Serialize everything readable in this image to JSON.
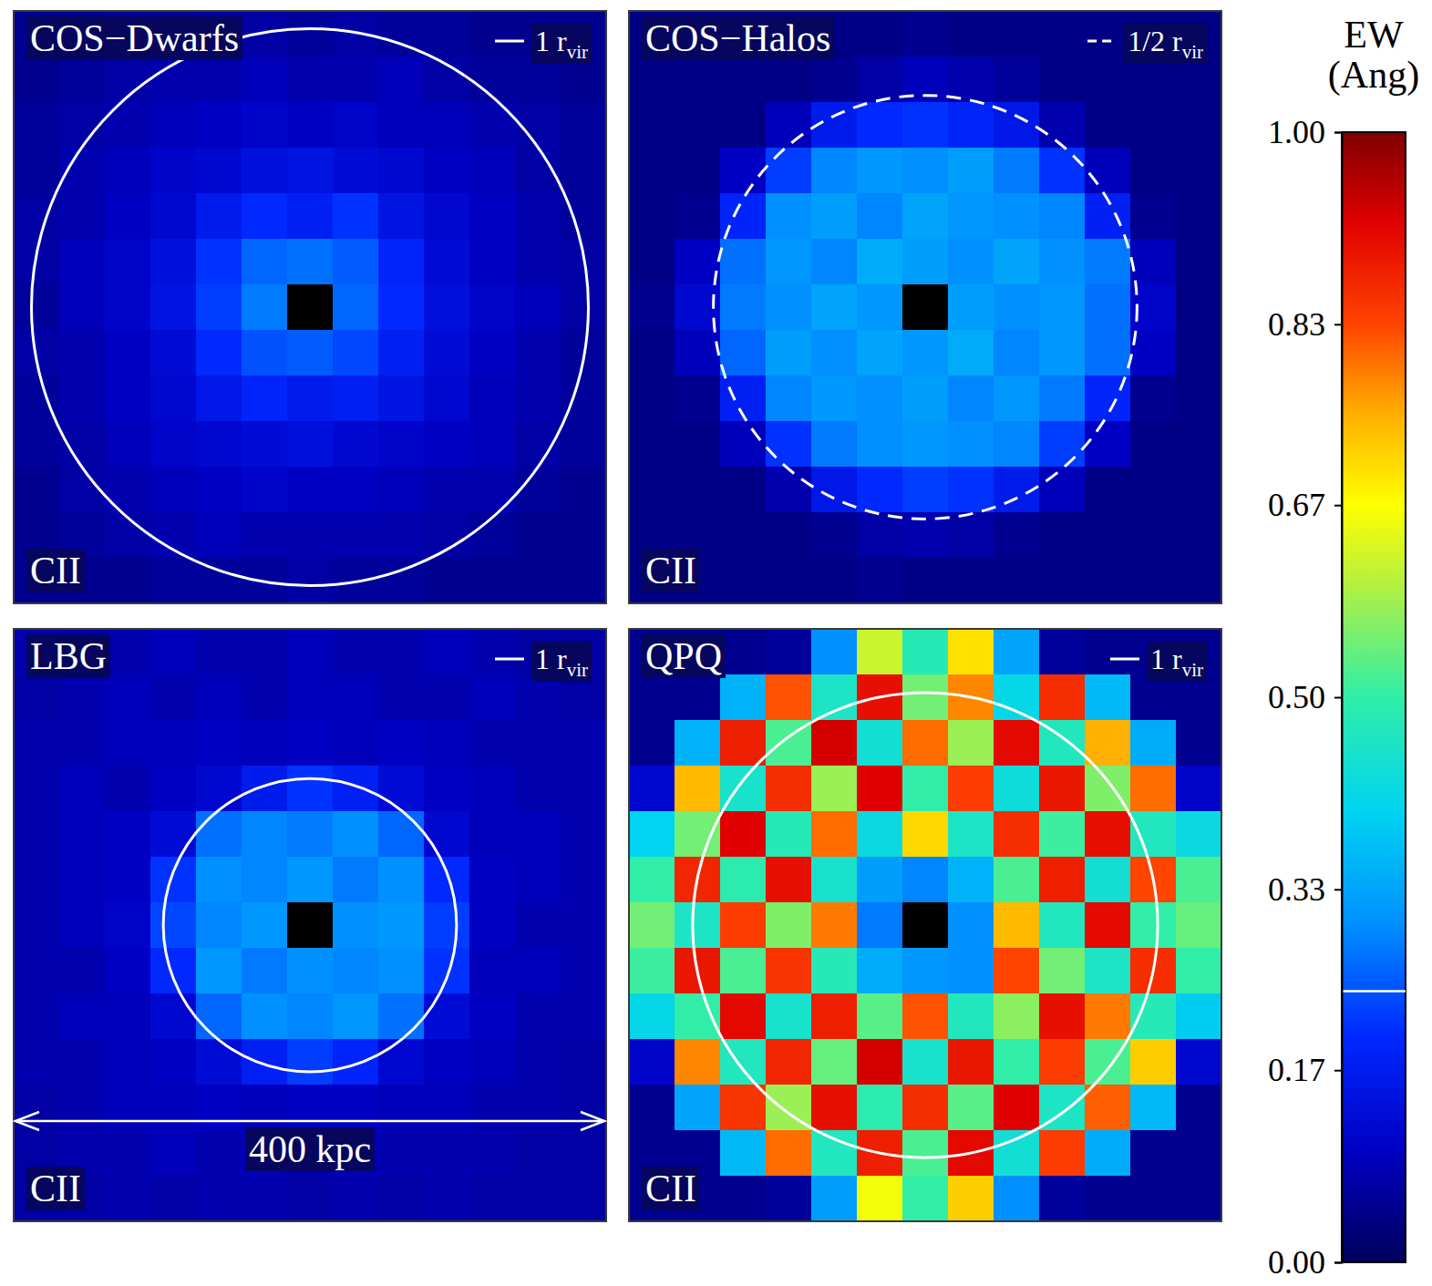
{
  "chart_data": [
    {
      "type": "heatmap",
      "title": "COS−Dwarfs",
      "label": "CII",
      "xlim": [
        -200,
        200
      ],
      "ylim": [
        -200,
        200
      ],
      "tick_labels": false,
      "circle": {
        "radius": 188,
        "line_style": "solid",
        "label": {
          "main": "1 r",
          "sub": "vir"
        }
      },
      "cells": [
        [
          0.05,
          0.05,
          0.06,
          0.06,
          0.07,
          0.07,
          0.06,
          0.07,
          0.06,
          0.06,
          0.05,
          0.05,
          0.05
        ],
        [
          0.05,
          0.06,
          0.07,
          0.08,
          0.08,
          0.09,
          0.08,
          0.08,
          0.09,
          0.07,
          0.06,
          0.06,
          0.05
        ],
        [
          0.06,
          0.07,
          0.08,
          0.09,
          0.1,
          0.11,
          0.1,
          0.11,
          0.09,
          0.09,
          0.08,
          0.07,
          0.06
        ],
        [
          0.06,
          0.08,
          0.09,
          0.11,
          0.12,
          0.14,
          0.15,
          0.13,
          0.12,
          0.1,
          0.09,
          0.07,
          0.06
        ],
        [
          0.07,
          0.08,
          0.1,
          0.12,
          0.17,
          0.2,
          0.18,
          0.21,
          0.15,
          0.12,
          0.1,
          0.08,
          0.06
        ],
        [
          0.07,
          0.09,
          0.11,
          0.14,
          0.21,
          0.26,
          0.27,
          0.25,
          0.19,
          0.13,
          0.1,
          0.08,
          0.07
        ],
        [
          0.06,
          0.09,
          0.11,
          0.15,
          0.22,
          0.28,
          null,
          0.26,
          0.2,
          0.14,
          0.11,
          0.09,
          0.07
        ],
        [
          0.07,
          0.08,
          0.1,
          0.13,
          0.2,
          0.24,
          0.25,
          0.23,
          0.18,
          0.13,
          0.1,
          0.08,
          0.06
        ],
        [
          0.06,
          0.08,
          0.1,
          0.12,
          0.16,
          0.19,
          0.17,
          0.18,
          0.15,
          0.12,
          0.09,
          0.08,
          0.06
        ],
        [
          0.06,
          0.07,
          0.09,
          0.11,
          0.12,
          0.13,
          0.14,
          0.12,
          0.11,
          0.1,
          0.09,
          0.07,
          0.06
        ],
        [
          0.05,
          0.07,
          0.08,
          0.09,
          0.1,
          0.11,
          0.1,
          0.1,
          0.09,
          0.08,
          0.08,
          0.06,
          0.05
        ],
        [
          0.05,
          0.06,
          0.07,
          0.08,
          0.09,
          0.08,
          0.08,
          0.08,
          0.08,
          0.07,
          0.06,
          0.05,
          0.05
        ],
        [
          0.05,
          0.05,
          0.05,
          0.06,
          0.06,
          0.06,
          0.07,
          0.06,
          0.06,
          0.05,
          0.05,
          0.05,
          0.05
        ]
      ]
    },
    {
      "type": "heatmap",
      "title": "COS−Halos",
      "label": "CII",
      "xlim": [
        -200,
        200
      ],
      "ylim": [
        -200,
        200
      ],
      "tick_labels": false,
      "circle": {
        "radius": 143,
        "line_style": "dashed",
        "label": {
          "main": "1/2 r",
          "sub": "vir"
        }
      },
      "cells": [
        [
          0.04,
          0.04,
          0.04,
          0.04,
          0.04,
          0.04,
          0.05,
          0.04,
          0.04,
          0.04,
          0.04,
          0.04,
          0.04
        ],
        [
          0.04,
          0.04,
          0.04,
          0.04,
          0.05,
          0.07,
          0.09,
          0.08,
          0.06,
          0.04,
          0.04,
          0.04,
          0.04
        ],
        [
          0.04,
          0.04,
          0.04,
          0.09,
          0.17,
          0.2,
          0.21,
          0.19,
          0.16,
          0.08,
          0.04,
          0.04,
          0.04
        ],
        [
          0.04,
          0.04,
          0.1,
          0.22,
          0.29,
          0.31,
          0.3,
          0.32,
          0.28,
          0.21,
          0.09,
          0.04,
          0.04
        ],
        [
          0.04,
          0.05,
          0.19,
          0.3,
          0.32,
          0.29,
          0.33,
          0.31,
          0.3,
          0.29,
          0.18,
          0.05,
          0.04
        ],
        [
          0.04,
          0.1,
          0.27,
          0.31,
          0.29,
          0.34,
          0.32,
          0.3,
          0.33,
          0.3,
          0.28,
          0.09,
          0.04
        ],
        [
          0.05,
          0.12,
          0.28,
          0.3,
          0.33,
          0.31,
          null,
          0.32,
          0.3,
          0.31,
          0.27,
          0.11,
          0.04
        ],
        [
          0.04,
          0.09,
          0.26,
          0.32,
          0.3,
          0.33,
          0.31,
          0.34,
          0.29,
          0.31,
          0.27,
          0.1,
          0.04
        ],
        [
          0.04,
          0.05,
          0.18,
          0.29,
          0.31,
          0.3,
          0.32,
          0.29,
          0.31,
          0.28,
          0.19,
          0.05,
          0.04
        ],
        [
          0.04,
          0.04,
          0.09,
          0.21,
          0.28,
          0.3,
          0.31,
          0.3,
          0.29,
          0.22,
          0.1,
          0.04,
          0.04
        ],
        [
          0.04,
          0.04,
          0.04,
          0.08,
          0.16,
          0.2,
          0.22,
          0.21,
          0.17,
          0.09,
          0.04,
          0.04,
          0.04
        ],
        [
          0.04,
          0.04,
          0.04,
          0.04,
          0.05,
          0.07,
          0.08,
          0.07,
          0.05,
          0.04,
          0.04,
          0.04,
          0.04
        ],
        [
          0.04,
          0.04,
          0.04,
          0.04,
          0.04,
          0.05,
          0.04,
          0.04,
          0.04,
          0.04,
          0.04,
          0.04,
          0.04
        ]
      ]
    },
    {
      "type": "heatmap",
      "title": "LBG",
      "label": "CII",
      "xlim": [
        -200,
        200
      ],
      "ylim": [
        -200,
        200
      ],
      "tick_labels": false,
      "circle": {
        "radius": 99,
        "line_style": "solid",
        "label": {
          "main": "1 r",
          "sub": "vir"
        }
      },
      "scale_bar": {
        "length": 400,
        "label": "400 kpc"
      },
      "cells": [
        [
          0.08,
          0.07,
          0.08,
          0.09,
          0.08,
          0.08,
          0.09,
          0.08,
          0.08,
          0.09,
          0.08,
          0.07,
          0.07
        ],
        [
          0.07,
          0.08,
          0.09,
          0.08,
          0.09,
          0.08,
          0.09,
          0.09,
          0.08,
          0.08,
          0.09,
          0.08,
          0.07
        ],
        [
          0.08,
          0.08,
          0.09,
          0.09,
          0.1,
          0.09,
          0.1,
          0.09,
          0.1,
          0.09,
          0.08,
          0.08,
          0.08
        ],
        [
          0.08,
          0.09,
          0.08,
          0.1,
          0.12,
          0.17,
          0.21,
          0.18,
          0.13,
          0.1,
          0.09,
          0.08,
          0.08
        ],
        [
          0.08,
          0.09,
          0.1,
          0.13,
          0.27,
          0.29,
          0.28,
          0.3,
          0.26,
          0.12,
          0.09,
          0.09,
          0.08
        ],
        [
          0.08,
          0.09,
          0.1,
          0.21,
          0.3,
          0.29,
          0.31,
          0.28,
          0.3,
          0.2,
          0.1,
          0.09,
          0.08
        ],
        [
          0.08,
          0.09,
          0.11,
          0.23,
          0.29,
          0.31,
          null,
          0.3,
          0.31,
          0.22,
          0.1,
          0.08,
          0.08
        ],
        [
          0.08,
          0.08,
          0.1,
          0.2,
          0.31,
          0.28,
          0.3,
          0.29,
          0.3,
          0.21,
          0.09,
          0.09,
          0.08
        ],
        [
          0.08,
          0.09,
          0.09,
          0.12,
          0.26,
          0.3,
          0.29,
          0.31,
          0.27,
          0.13,
          0.1,
          0.08,
          0.08
        ],
        [
          0.08,
          0.08,
          0.09,
          0.1,
          0.13,
          0.18,
          0.22,
          0.19,
          0.12,
          0.1,
          0.09,
          0.08,
          0.07
        ],
        [
          0.07,
          0.08,
          0.09,
          0.09,
          0.1,
          0.09,
          0.1,
          0.1,
          0.09,
          0.09,
          0.08,
          0.08,
          0.07
        ],
        [
          0.07,
          0.08,
          0.08,
          0.09,
          0.08,
          0.09,
          0.08,
          0.09,
          0.08,
          0.08,
          0.08,
          0.07,
          0.07
        ],
        [
          0.07,
          0.07,
          0.08,
          0.07,
          0.08,
          0.08,
          0.07,
          0.08,
          0.07,
          0.08,
          0.07,
          0.07,
          0.07
        ]
      ]
    },
    {
      "type": "heatmap",
      "title": "QPQ",
      "label": "CII",
      "xlim": [
        -200,
        200
      ],
      "ylim": [
        -200,
        200
      ],
      "tick_labels": false,
      "circle": {
        "radius": 157,
        "line_style": "solid",
        "label": {
          "main": "1 r",
          "sub": "vir"
        }
      },
      "cells": [
        [
          0.05,
          0.05,
          0.05,
          0.06,
          0.3,
          0.62,
          0.48,
          0.7,
          0.33,
          0.06,
          0.05,
          0.05,
          0.05
        ],
        [
          0.05,
          0.05,
          0.35,
          0.82,
          0.46,
          0.9,
          0.55,
          0.78,
          0.41,
          0.86,
          0.36,
          0.05,
          0.05
        ],
        [
          0.05,
          0.35,
          0.88,
          0.52,
          0.93,
          0.44,
          0.8,
          0.58,
          0.91,
          0.47,
          0.75,
          0.34,
          0.05
        ],
        [
          0.12,
          0.74,
          0.45,
          0.86,
          0.58,
          0.92,
          0.5,
          0.84,
          0.43,
          0.89,
          0.56,
          0.8,
          0.11
        ],
        [
          0.4,
          0.55,
          0.92,
          0.48,
          0.8,
          0.42,
          0.71,
          0.46,
          0.86,
          0.51,
          0.9,
          0.47,
          0.42
        ],
        [
          0.5,
          0.87,
          0.49,
          0.9,
          0.45,
          0.32,
          0.29,
          0.35,
          0.52,
          0.88,
          0.44,
          0.83,
          0.52
        ],
        [
          0.55,
          0.46,
          0.84,
          0.56,
          0.79,
          0.28,
          null,
          0.3,
          0.74,
          0.47,
          0.91,
          0.5,
          0.54
        ],
        [
          0.51,
          0.89,
          0.52,
          0.85,
          0.48,
          0.34,
          0.31,
          0.3,
          0.83,
          0.55,
          0.46,
          0.86,
          0.5
        ],
        [
          0.41,
          0.5,
          0.91,
          0.45,
          0.88,
          0.53,
          0.82,
          0.47,
          0.57,
          0.9,
          0.79,
          0.48,
          0.39
        ],
        [
          0.11,
          0.78,
          0.47,
          0.87,
          0.54,
          0.93,
          0.45,
          0.89,
          0.5,
          0.84,
          0.52,
          0.72,
          0.12
        ],
        [
          0.05,
          0.33,
          0.85,
          0.58,
          0.9,
          0.49,
          0.86,
          0.53,
          0.92,
          0.46,
          0.81,
          0.36,
          0.05
        ],
        [
          0.05,
          0.05,
          0.36,
          0.8,
          0.47,
          0.88,
          0.52,
          0.91,
          0.44,
          0.84,
          0.34,
          0.05,
          0.05
        ],
        [
          0.05,
          0.05,
          0.05,
          0.06,
          0.32,
          0.66,
          0.5,
          0.72,
          0.3,
          0.06,
          0.05,
          0.05,
          0.05
        ]
      ]
    }
  ],
  "colorbar": {
    "label": "EW (Ang)",
    "range": [
      0,
      1
    ],
    "line": 0.24,
    "ticks": [
      {
        "value": 0,
        "label": "0.00"
      },
      {
        "value": 0.17,
        "label": "0.17"
      },
      {
        "value": 0.33,
        "label": "0.33"
      },
      {
        "value": 0.5,
        "label": "0.50"
      },
      {
        "value": 0.67,
        "label": "0.67"
      },
      {
        "value": 0.83,
        "label": "0.83"
      },
      {
        "value": 1,
        "label": "1.00"
      }
    ]
  }
}
